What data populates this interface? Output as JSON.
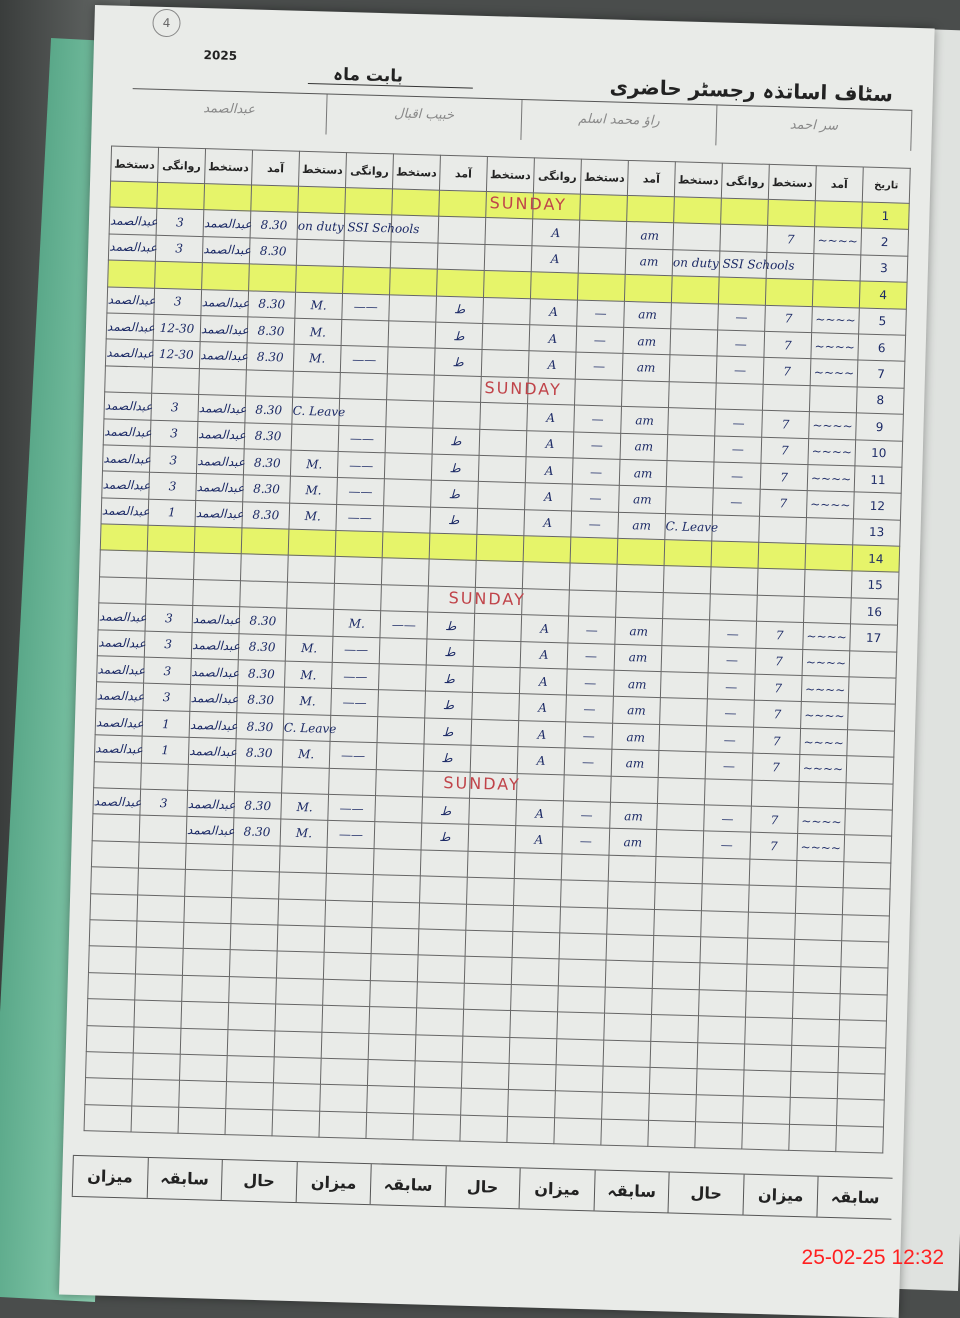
{
  "register": {
    "page_number": "4",
    "year": "2025",
    "title": "سٹاف اساتذہ رجسٹر حاضری",
    "month_label": "بابت ماہ",
    "staff_names": [
      "عبدالصمد",
      "خبیب اقبال",
      "راؤ محمد اسلم",
      "سر احمد"
    ],
    "date_header": "تاریخ",
    "column_headers": [
      "دستخط",
      "روانگی",
      "دستخط",
      "آمد",
      "دستخط",
      "روانگی",
      "دستخط",
      "آمد",
      "دستخط",
      "روانگی",
      "دستخط",
      "آمد",
      "دستخط",
      "روانگی",
      "دستخط",
      "آمد"
    ],
    "sunday_label": "SUNDAY",
    "rows": [
      {
        "date": "1",
        "type": "sunday-yellow",
        "cells": [
          "",
          "",
          "",
          "",
          "",
          "",
          "",
          "",
          "",
          "",
          "",
          "",
          "",
          "",
          "",
          ""
        ]
      },
      {
        "date": "2",
        "type": "normal",
        "cells": [
          "عبدالصمد",
          "3",
          "عبدالصمد",
          "8.30",
          "on duty SSI Schools",
          "",
          "",
          "",
          "",
          "A",
          "",
          "am",
          "",
          "",
          "7",
          "~~~~"
        ]
      },
      {
        "date": "3",
        "type": "normal",
        "cells": [
          "عبدالصمد",
          "3",
          "عبدالصمد",
          "8.30",
          "",
          "",
          "",
          "",
          "",
          "A",
          "",
          "am",
          "on duty SSI Schools",
          "",
          "",
          ""
        ]
      },
      {
        "date": "4",
        "type": "yellow",
        "cells": [
          "",
          "",
          "",
          "",
          "",
          "",
          "",
          "",
          "",
          "",
          "",
          "",
          "",
          "",
          "",
          ""
        ]
      },
      {
        "date": "5",
        "type": "normal",
        "cells": [
          "عبدالصمد",
          "3",
          "عبدالصمد",
          "8.30",
          "M.",
          "——",
          "",
          "ط",
          "",
          "A",
          "—",
          "am",
          "",
          "—",
          "7",
          "~~~~"
        ]
      },
      {
        "date": "6",
        "type": "normal",
        "cells": [
          "عبدالصمد",
          "12-30",
          "عبدالصمد",
          "8.30",
          "M.",
          "",
          "",
          "ط",
          "",
          "A",
          "—",
          "am",
          "",
          "—",
          "7",
          "~~~~"
        ]
      },
      {
        "date": "7",
        "type": "normal",
        "cells": [
          "عبدالصمد",
          "12-30",
          "عبدالصمد",
          "8.30",
          "M.",
          "——",
          "",
          "ط",
          "",
          "A",
          "—",
          "am",
          "",
          "—",
          "7",
          "~~~~"
        ]
      },
      {
        "date": "8",
        "type": "sunday",
        "cells": [
          "",
          "",
          "",
          "",
          "",
          "",
          "",
          "",
          "",
          "",
          "",
          "",
          "",
          "",
          "",
          ""
        ]
      },
      {
        "date": "9",
        "type": "normal",
        "cells": [
          "عبدالصمد",
          "3",
          "عبدالصمد",
          "8.30",
          "C. Leave",
          "",
          "",
          "",
          "",
          "A",
          "—",
          "am",
          "",
          "—",
          "7",
          "~~~~"
        ]
      },
      {
        "date": "10",
        "type": "normal",
        "cells": [
          "عبدالصمد",
          "3",
          "عبدالصمد",
          "8.30",
          "",
          "——",
          "",
          "ط",
          "",
          "A",
          "—",
          "am",
          "",
          "—",
          "7",
          "~~~~"
        ]
      },
      {
        "date": "11",
        "type": "normal",
        "cells": [
          "عبدالصمد",
          "3",
          "عبدالصمد",
          "8.30",
          "M.",
          "——",
          "",
          "ط",
          "",
          "A",
          "—",
          "am",
          "",
          "—",
          "7",
          "~~~~"
        ]
      },
      {
        "date": "12",
        "type": "normal",
        "cells": [
          "عبدالصمد",
          "3",
          "عبدالصمد",
          "8.30",
          "M.",
          "——",
          "",
          "ط",
          "",
          "A",
          "—",
          "am",
          "",
          "—",
          "7",
          "~~~~"
        ]
      },
      {
        "date": "13",
        "type": "normal",
        "cells": [
          "عبدالصمد",
          "1",
          "عبدالصمد",
          "8.30",
          "M.",
          "——",
          "",
          "ط",
          "",
          "A",
          "—",
          "am",
          "C. Leave",
          "",
          "",
          ""
        ]
      },
      {
        "date": "14",
        "type": "yellow",
        "cells": [
          "",
          "",
          "",
          "",
          "",
          "",
          "",
          "",
          "",
          "",
          "",
          "",
          "",
          "",
          "",
          ""
        ]
      },
      {
        "date": "15",
        "type": "normal",
        "cells": [
          "",
          "",
          "",
          "",
          "",
          "",
          "",
          "",
          "",
          "",
          "",
          "",
          "",
          "",
          "",
          ""
        ]
      },
      {
        "date": "16",
        "type": "sunday",
        "cells": [
          "",
          "",
          "",
          "",
          "",
          "",
          "",
          "",
          "",
          "",
          "",
          "",
          "",
          "",
          "",
          ""
        ]
      },
      {
        "date": "17",
        "type": "normal",
        "cells": [
          "عبدالصمد",
          "3",
          "عبدالصمد",
          "8.30",
          "",
          "M.",
          "——",
          "ط",
          "",
          "A",
          "—",
          "am",
          "",
          "—",
          "7",
          "~~~~"
        ]
      },
      {
        "date": "",
        "type": "normal",
        "cells": [
          "عبدالصمد",
          "3",
          "عبدالصمد",
          "8.30",
          "M.",
          "——",
          "",
          "ط",
          "",
          "A",
          "—",
          "am",
          "",
          "—",
          "7",
          "~~~~"
        ]
      },
      {
        "date": "",
        "type": "normal",
        "cells": [
          "عبدالصمد",
          "3",
          "عبدالصمد",
          "8.30",
          "M.",
          "——",
          "",
          "ط",
          "",
          "A",
          "—",
          "am",
          "",
          "—",
          "7",
          "~~~~"
        ]
      },
      {
        "date": "",
        "type": "normal",
        "cells": [
          "عبدالصمد",
          "3",
          "عبدالصمد",
          "8.30",
          "M.",
          "——",
          "",
          "ط",
          "",
          "A",
          "—",
          "am",
          "",
          "—",
          "7",
          "~~~~"
        ]
      },
      {
        "date": "",
        "type": "normal",
        "cells": [
          "عبدالصمد",
          "1",
          "عبدالصمد",
          "8.30",
          "C. Leave",
          "",
          "",
          "ط",
          "",
          "A",
          "—",
          "am",
          "",
          "—",
          "7",
          "~~~~"
        ]
      },
      {
        "date": "",
        "type": "normal",
        "cells": [
          "عبدالصمد",
          "1",
          "عبدالصمد",
          "8.30",
          "M.",
          "——",
          "",
          "ط",
          "",
          "A",
          "—",
          "am",
          "",
          "—",
          "7",
          "~~~~"
        ]
      },
      {
        "date": "",
        "type": "sunday",
        "cells": [
          "",
          "",
          "",
          "",
          "",
          "",
          "",
          "",
          "",
          "",
          "",
          "",
          "",
          "",
          "",
          ""
        ]
      },
      {
        "date": "",
        "type": "normal",
        "cells": [
          "عبدالصمد",
          "3",
          "عبدالصمد",
          "8.30",
          "M.",
          "——",
          "",
          "ط",
          "",
          "A",
          "—",
          "am",
          "",
          "—",
          "7",
          "~~~~"
        ]
      },
      {
        "date": "",
        "type": "normal",
        "cells": [
          "",
          "",
          "عبدالصمد",
          "8.30",
          "M.",
          "——",
          "",
          "ط",
          "",
          "A",
          "—",
          "am",
          "",
          "—",
          "7",
          "~~~~"
        ]
      }
    ],
    "footer_labels": [
      "میزان",
      "سابقہ",
      "حال",
      "میزان",
      "سابقہ",
      "حال",
      "میزان",
      "سابقہ",
      "حال",
      "میزان",
      "سابقہ"
    ],
    "timestamp": "25-02-25  12:32"
  }
}
